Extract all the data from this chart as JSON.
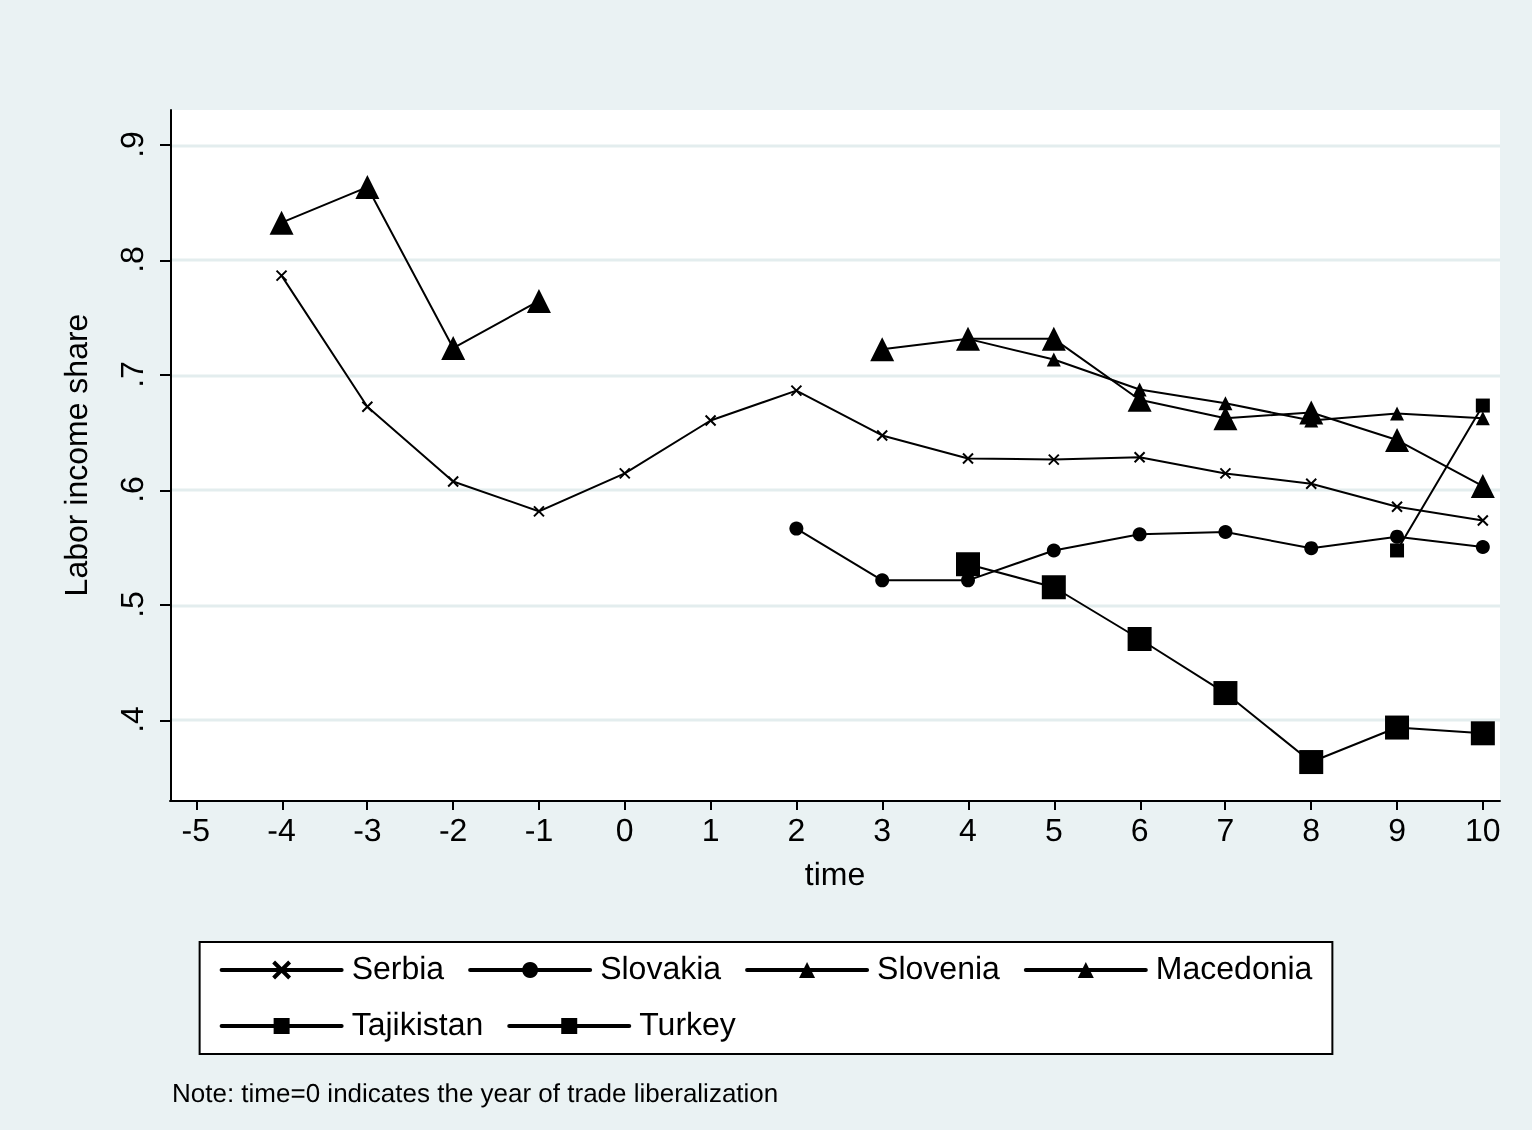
{
  "chart_data": {
    "type": "line",
    "xlabel": "time",
    "ylabel": "Labor income share",
    "x": [
      -4,
      -3,
      -2,
      -1,
      0,
      1,
      2,
      3,
      4,
      5,
      6,
      7,
      8,
      9,
      10
    ],
    "series": [
      {
        "name": "Serbia",
        "color": "#000000",
        "marker": "cross",
        "values": [
          0.786,
          0.672,
          0.607,
          0.581,
          0.614,
          0.66,
          0.686,
          0.647,
          0.627,
          0.626,
          0.628,
          0.614,
          0.605,
          0.585,
          0.573
        ]
      },
      {
        "name": "Slovakia",
        "color": "#000000",
        "marker": "circle",
        "values": [
          null,
          null,
          null,
          null,
          null,
          null,
          0.566,
          0.521,
          0.521,
          0.547,
          0.561,
          0.563,
          0.549,
          0.559,
          0.55
        ]
      },
      {
        "name": "Slovenia",
        "color": "#000000",
        "marker": "triangle",
        "values": [
          null,
          null,
          null,
          null,
          null,
          null,
          null,
          null,
          0.731,
          0.713,
          0.687,
          0.675,
          0.66,
          0.666,
          0.662
        ]
      },
      {
        "name": "Macedonia",
        "color": "#000000",
        "marker": "triangle",
        "values": [
          0.832,
          0.863,
          0.723,
          0.764,
          null,
          null,
          null,
          0.722,
          0.731,
          0.731,
          0.678,
          0.662,
          0.667,
          0.643,
          0.603
        ]
      },
      {
        "name": "Tajikistan",
        "color": "#000000",
        "marker": "square",
        "values": [
          null,
          null,
          null,
          null,
          null,
          null,
          null,
          null,
          0.535,
          0.515,
          0.47,
          0.423,
          0.363,
          0.393,
          0.388
        ]
      },
      {
        "name": "Turkey",
        "color": "#000000",
        "marker": "square",
        "values": [
          null,
          null,
          null,
          null,
          null,
          null,
          null,
          null,
          null,
          null,
          null,
          null,
          null,
          0.547,
          0.673
        ]
      }
    ],
    "xlim": [
      -5.3,
      10.2
    ],
    "xticks": [
      -5,
      -4,
      -3,
      -2,
      -1,
      0,
      1,
      2,
      3,
      4,
      5,
      6,
      7,
      8,
      9,
      10
    ],
    "ylim": [
      0.33,
      0.93
    ],
    "yticks": [
      {
        "value": 0.4,
        "label": ".4"
      },
      {
        "value": 0.5,
        "label": ".5"
      },
      {
        "value": 0.6,
        "label": ".6"
      },
      {
        "value": 0.7,
        "label": ".7"
      },
      {
        "value": 0.8,
        "label": ".8"
      },
      {
        "value": 0.9,
        "label": ".9"
      }
    ],
    "grid": "y",
    "legend": "bottom",
    "line_style": "solid",
    "annotations": [
      "Note: time=0 indicates the year of trade liberalization"
    ]
  }
}
